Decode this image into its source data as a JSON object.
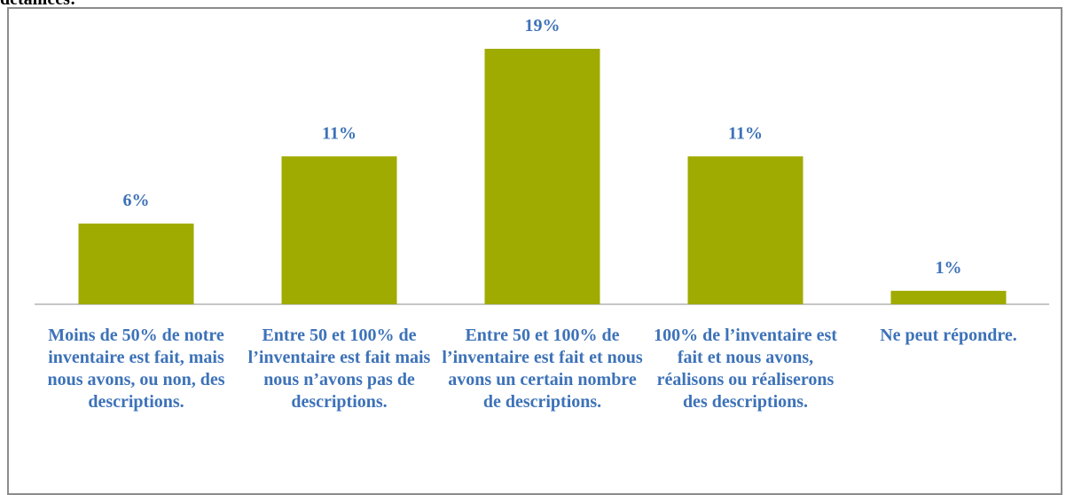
{
  "heading": "détaillées:",
  "chart_data": {
    "type": "bar",
    "categories": [
      "Moins de 50% de notre inventaire est fait, mais nous avons, ou non, des descriptions.",
      "Entre 50 et 100% de l’inventaire est fait mais nous n’avons pas de descriptions.",
      "Entre 50 et 100% de l’inventaire est fait et nous avons un certain nombre de descriptions.",
      "100% de l’inventaire est fait et nous avons, réalisons ou réaliserons des descriptions.",
      "Ne peut répondre."
    ],
    "values": [
      6,
      11,
      19,
      11,
      1
    ],
    "value_labels": [
      "6%",
      "11%",
      "19%",
      "11%",
      "1%"
    ],
    "color": "#9fab00"
  }
}
